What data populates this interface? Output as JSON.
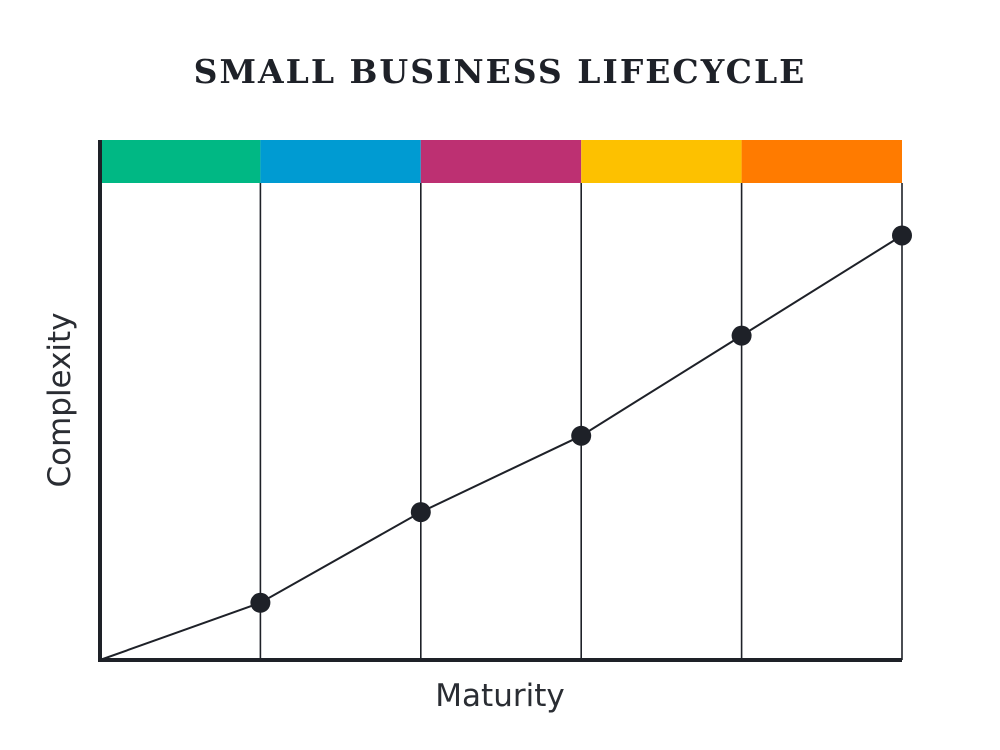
{
  "chart_data": {
    "type": "line",
    "title": "SMALL BUSINESS LIFECYCLE",
    "xlabel": "Maturity",
    "ylabel": "Complexity",
    "xlim": [
      0,
      5
    ],
    "ylim": [
      0,
      100
    ],
    "stage_colors": [
      "#00b884",
      "#009bd2",
      "#bd3072",
      "#fdc100",
      "#ff7b00"
    ],
    "line_color": "#1e2128",
    "points": [
      {
        "x": 0,
        "y": 0
      },
      {
        "x": 1,
        "y": 12
      },
      {
        "x": 2,
        "y": 31
      },
      {
        "x": 3,
        "y": 47
      },
      {
        "x": 4,
        "y": 68
      },
      {
        "x": 5,
        "y": 89
      }
    ],
    "marker_from_index": 1
  }
}
